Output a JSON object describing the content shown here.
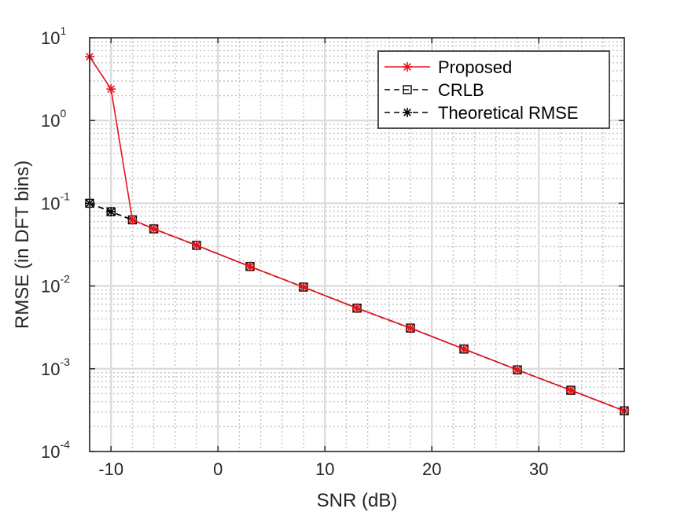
{
  "chart_data": {
    "type": "line",
    "xlabel": "SNR (dB)",
    "ylabel": "RMSE (in DFT bins)",
    "xlim": [
      -12,
      38
    ],
    "ylim": [
      0.0001,
      10
    ],
    "yscale": "log",
    "grid": true,
    "legend_position": "top-right",
    "x_ticks": [
      -10,
      0,
      10,
      20,
      30
    ],
    "x_tick_labels": [
      "-10",
      "0",
      "10",
      "20",
      "30"
    ],
    "y_ticks": [
      0.0001,
      0.001,
      0.01,
      0.1,
      1,
      10
    ],
    "y_tick_labels": [
      {
        "base": "10",
        "exp": "-4"
      },
      {
        "base": "10",
        "exp": "-3"
      },
      {
        "base": "10",
        "exp": "-2"
      },
      {
        "base": "10",
        "exp": "-1"
      },
      {
        "base": "10",
        "exp": "0"
      },
      {
        "base": "10",
        "exp": "1"
      }
    ],
    "x": [
      -12,
      -10,
      -8,
      -6,
      -2,
      3,
      8,
      13,
      18,
      23,
      28,
      33,
      38
    ],
    "series": [
      {
        "name": "Proposed",
        "color": "#e8141b",
        "line": "solid",
        "marker": "asterisk",
        "values": [
          5.9,
          2.4,
          0.063,
          0.049,
          0.031,
          0.0172,
          0.0097,
          0.0054,
          0.0031,
          0.00173,
          0.00097,
          0.00055,
          0.00031
        ]
      },
      {
        "name": "CRLB",
        "color": "#000000",
        "line": "dashed",
        "marker": "square",
        "values": [
          0.1,
          0.079,
          0.063,
          0.049,
          0.031,
          0.0172,
          0.0097,
          0.0054,
          0.0031,
          0.00173,
          0.00097,
          0.00055,
          0.00031
        ]
      },
      {
        "name": "Theoretical RMSE",
        "color": "#000000",
        "line": "dashed",
        "marker": "asterisk",
        "values": [
          0.1,
          0.079,
          0.063,
          0.049,
          0.031,
          0.0172,
          0.0097,
          0.0054,
          0.0031,
          0.00173,
          0.00097,
          0.00055,
          0.00031
        ]
      }
    ]
  }
}
